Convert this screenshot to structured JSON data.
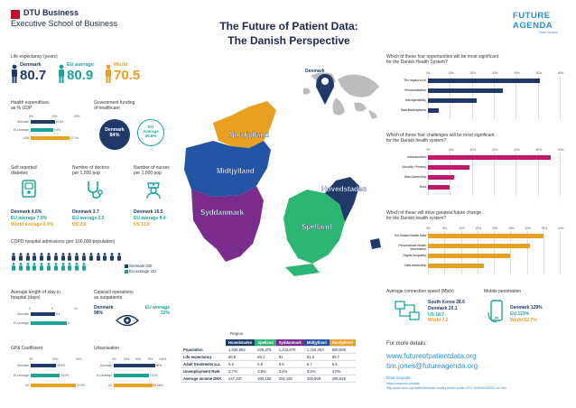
{
  "header": {
    "dtu_line1": "DTU Business",
    "dtu_line2": "Executive School of Business",
    "title_line1": "The Future of Patient Data:",
    "title_line2": "The Danish Perspective",
    "fa_line1": "FUTURE",
    "fa_line2": "AGENDA",
    "fa_tag": "Think Forward"
  },
  "life_expectancy": {
    "label": "Life expectancy (years)",
    "items": [
      {
        "name": "Denmark",
        "value": "80.7",
        "color": "#1f3a68"
      },
      {
        "name": "EU average",
        "value": "80.9",
        "color": "#1aa59a"
      },
      {
        "name": "World",
        "value": "70.5",
        "color": "#e8a020"
      }
    ]
  },
  "health_expenditure": {
    "label1": "Health expenditure",
    "label2": "as % GDP",
    "ticks": [
      "0%",
      "10%",
      "20%"
    ],
    "rows": [
      {
        "name": "Denmark",
        "value": 10.6,
        "text": "10.6%",
        "color": "#1f3a68"
      },
      {
        "name": "EU average",
        "value": 9.9,
        "text": "9.9%",
        "color": "#1aa59a"
      },
      {
        "name": "USA",
        "value": 17.1,
        "text": "17.1%",
        "color": "#e8a020"
      }
    ],
    "max": 20
  },
  "government_funding": {
    "label1": "Government funding",
    "label2": "of healthcare",
    "dk_name": "Denmark",
    "dk_value": "84%",
    "eu_name": "EU",
    "eu_name2": "Average",
    "eu_value": "30.6%"
  },
  "self_reported": {
    "label1": "Self reported",
    "label2": "diabetes",
    "dk": "Denmark 4.6%",
    "eu": "EU average 7.0%",
    "world": "World average 6.4%"
  },
  "doctors": {
    "label1": "Number of doctors",
    "label2": "per 1,000 pop",
    "dk": "Denmark 3.7",
    "eu": "EU average 3.5",
    "us": "US 2.6"
  },
  "nurses": {
    "label1": "Number of nurses",
    "label2": "per 1,000 pop",
    "dk": "Denmark 16.5",
    "eu": "EU average 8.4",
    "us": "US 11.6"
  },
  "copd": {
    "label": "COPD hospital admissions (per 100,000 population)",
    "legend_dk": "Denmark 330",
    "legend_eu": "EU average 231",
    "dk_count": 16,
    "eu_count": 11
  },
  "length_of_stay": {
    "label1": "Average length of stay in",
    "label2": "hospital (days)",
    "ticks": [
      "0",
      "5",
      "10"
    ],
    "rows": [
      {
        "name": "Denmark",
        "value": 5.4,
        "text": "5.4",
        "color": "#1f3a68"
      },
      {
        "name": "EU average",
        "value": 8,
        "text": "8",
        "color": "#1aa59a"
      }
    ],
    "max": 10
  },
  "cataract": {
    "label1": "Cataract operations",
    "label2": "as outpatients",
    "dk_name": "Denmark",
    "dk_value": "98%",
    "eu_name": "EU average",
    "eu_value": "32%"
  },
  "gini": {
    "label": "GINI Coefficient",
    "ticks": [
      "0%",
      "25%",
      "50%"
    ],
    "rows": [
      {
        "name": "Denmark",
        "value": 26.9,
        "text": "26.9%",
        "color": "#1f3a68"
      },
      {
        "name": "EU average",
        "value": 30.9,
        "text": "30.9%",
        "color": "#1aa59a"
      },
      {
        "name": "US",
        "value": 47.9,
        "text": "47.9%",
        "color": "#e8a020"
      }
    ],
    "max": 50
  },
  "urbanisation": {
    "label": "Urbanisation",
    "ticks": [
      "0%",
      "25%",
      "50%",
      "75%",
      "100%"
    ],
    "rows": [
      {
        "name": "Denmark",
        "value": 88,
        "text": "88%",
        "color": "#1f3a68"
      },
      {
        "name": "EU average",
        "value": 74.6,
        "text": "74.6%",
        "color": "#1aa59a"
      },
      {
        "name": "US",
        "value": 82.06,
        "text": "82.06%",
        "color": "#e8a020"
      }
    ],
    "max": 100
  },
  "map": {
    "denmark_pin": "Denmark",
    "regions": [
      "Nordjylland",
      "Midtjylland",
      "Syddanmark",
      "Sjælland",
      "Hovedstaden"
    ]
  },
  "region_table": {
    "caption": "Region",
    "headers": [
      "Hovedstaden",
      "Sjælland",
      "Syddanmark",
      "Midtjylland",
      "Nordjylland"
    ],
    "header_colors": [
      "#1f3a68",
      "#2bb673",
      "#7b2d8e",
      "#2255a4",
      "#e8a020"
    ],
    "rows": [
      {
        "label": "Population",
        "values": [
          "1,835,853",
          "836,375",
          "1,222,870",
          "1,316,353",
          "590,696"
        ]
      },
      {
        "label": "Life expectancy",
        "values": [
          "80.6",
          "80.1",
          "81",
          "81.5",
          "80.7"
        ]
      },
      {
        "label": "Adult treatments p.a.",
        "values": [
          "5.9",
          "5.8",
          "6.8",
          "6.7",
          "6.5"
        ]
      },
      {
        "label": "Unemployment Rate",
        "values": [
          "3.7%",
          "3.8%",
          "3.4%",
          "3.3%",
          "4.0%"
        ]
      },
      {
        "label": "Average Income DKK",
        "values": [
          "347,197",
          "305,158",
          "291,160",
          "300,869",
          "295,625"
        ]
      }
    ]
  },
  "opportunities": {
    "label1": "Which of these four opportunities will be most significant",
    "label2": "for the Danish Health System?",
    "ticks": [
      "0%",
      "10%",
      "20%",
      "30%",
      "40%",
      "50%",
      "60%"
    ],
    "max": 60,
    "rows": [
      {
        "name": "The Impact of AI",
        "value": 51
      },
      {
        "name": "Personalisation",
        "value": 34
      },
      {
        "name": "Interoperability",
        "value": 22
      },
      {
        "name": "Data Marketplaces",
        "value": 5
      }
    ],
    "color": "#1f3a68"
  },
  "challenges": {
    "label1": "Which of these four challenges will be most significant",
    "label2": "for the Danish health system?",
    "ticks": [
      "0%",
      "10%",
      "20%",
      "30%",
      "40%",
      "50%",
      "60%"
    ],
    "max": 60,
    "rows": [
      {
        "name": "Infrastructure",
        "value": 56
      },
      {
        "name": "Security / Privacy",
        "value": 19
      },
      {
        "name": "Data Ownership",
        "value": 12
      },
      {
        "name": "Trust",
        "value": 10
      }
    ],
    "color": "#c2186b"
  },
  "greatest_change": {
    "label1": "Which of these will drive greatest future change",
    "label2": "for the Danish health system?",
    "ticks": [
      "0%",
      "5%",
      "10%",
      "15%",
      "20%",
      "25%",
      "30%",
      "35%",
      "40%"
    ],
    "max": 40,
    "rows": [
      {
        "name": "The Instant Health Data",
        "value": 35
      },
      {
        "name": "Personalised Health Information",
        "value": 31
      },
      {
        "name": "Digital Inequality",
        "value": 25
      },
      {
        "name": "Data ownership",
        "value": 17
      }
    ],
    "color": "#e8a020"
  },
  "connection": {
    "label": "Average connection speed (Mb/s)",
    "lines": [
      "South Korea 28.6",
      "Denmark 20.1",
      "US 18.7",
      "World 7.2"
    ]
  },
  "mobile": {
    "label": "Mobile penetration",
    "lines": [
      "Denmark 129%",
      "EU 123%",
      "World 52.7%"
    ]
  },
  "footer": {
    "more_details": "For more details:",
    "url": "www.futureofpatientdata.org",
    "email": "tim.jones@futureagenda.org",
    "sources_label": "Data sources:",
    "source1": "https://www.who.int/data",
    "source2": "http://www.oecd.org/health/denmark-country-health-profile-2017-9789264283312-en.htm"
  }
}
